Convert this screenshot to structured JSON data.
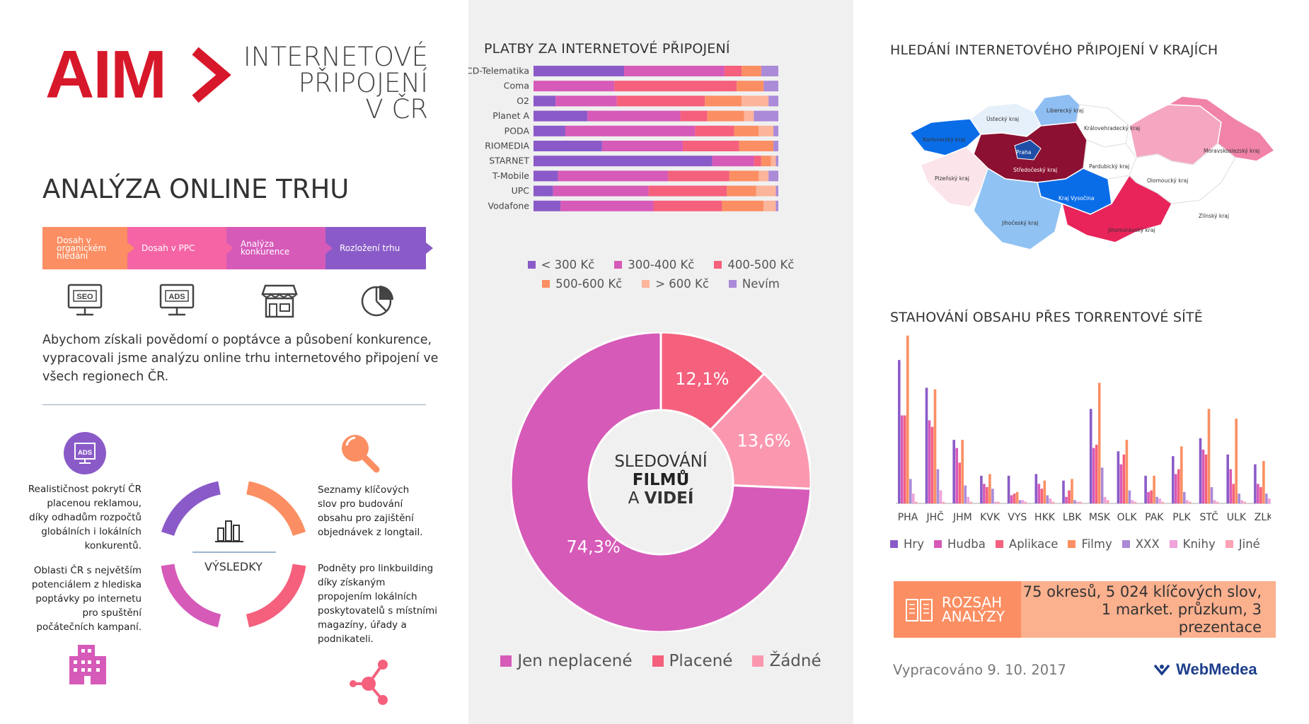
{
  "brand": {
    "logo_text": "AIM",
    "title": "INTERNETOVÉ\nPŘIPOJENÍ\nV ČR",
    "subtitle": "ANALÝZA ONLINE TRHU",
    "accent": "#d7182a"
  },
  "process_steps": [
    {
      "label": "Dosah v organickém hledání",
      "color": "#fb8f63",
      "icon": "seo-monitor-icon"
    },
    {
      "label": "Dosah v PPC",
      "color": "#f565a5",
      "icon": "ads-monitor-icon"
    },
    {
      "label": "Analýza konkurence",
      "color": "#d65ab8",
      "icon": "shop-icon"
    },
    {
      "label": "Rozložení trhu",
      "color": "#8a5bc8",
      "icon": "pie-chart-icon"
    }
  ],
  "step_icon_labels": {
    "seo": "SEO",
    "ads": "ADS"
  },
  "intro_text": "Abychom získali povědomí o poptávce a působení konkurence, vypracovali jsme analýzu online trhu internetového připojení ve všech regionech ČR.",
  "results": {
    "center_label": "VÝSLEDKY",
    "ads_badge": "ADS",
    "notes": [
      "Realističnost pokrytí ČR placenou reklamou, díky odhadům rozpočtů globálních i lokálních konkurentů.",
      "Oblasti ČR s největším potenciálem z hlediska poptávky po internetu pro spuštění počátečních kampaní.",
      "Seznamy klíčových slov pro budování obsahu pro zajištění objednávek z longtail.",
      "Podněty pro linkbuilding díky získaným propojením lokálních poskytovatelů s místními magazíny, úřady a podnikateli."
    ]
  },
  "sections": {
    "payments_title": "PLATBY  ZA INTERNETOVÉ PŘIPOJENÍ",
    "map_title": "HLEDÁNÍ INTERNETOVÉHO PŘIPOJENÍ V KRAJÍCH",
    "torrent_title": "STAHOVÁNÍ OBSAHU PŘES TORRENTOVÉ SÍTĚ"
  },
  "donut_center": {
    "line1": "SLEDOVÁNÍ",
    "line2": "FILMŮ",
    "line3_prefix": "A ",
    "line3_bold": "VIDEÍ"
  },
  "map_regions": [
    "Ústecký kraj",
    "Liberecký kraj",
    "Královehradecký kraj",
    "Karlovarský kraj",
    "Praha",
    "Středočeský kraj",
    "Pardubický kraj",
    "Moravskoslezský kraj",
    "Plzeňský kraj",
    "Olomoucký kraj",
    "Kraj Vysočina",
    "Zlínský kraj",
    "Jihočeský kraj",
    "Jihomoravský kraj"
  ],
  "summary": {
    "label": "ROZSAH ANALÝZY",
    "line1": "75 okresů, 5 024 klíčových slov,",
    "line2": "1 market. průzkum, 3 prezentace"
  },
  "footer": {
    "date": "Vypracováno 9. 10. 2017",
    "brand": "WebMedea"
  },
  "chart_data": [
    {
      "type": "bar",
      "orientation": "horizontal",
      "stacked": true,
      "title": "PLATBY  ZA INTERNETOVÉ PŘIPOJENÍ",
      "categories": [
        "CD-Telematika",
        "Coma",
        "O2",
        "Planet A",
        "PODA",
        "RIOMEDIA",
        "STARNET",
        "T-Mobile",
        "UPC",
        "Vodafone"
      ],
      "series": [
        {
          "name": "< 300 Kč",
          "color": "#8a5bc8",
          "values": [
            37,
            0,
            9,
            22,
            13,
            28,
            73,
            10,
            8,
            11
          ]
        },
        {
          "name": "300-400 Kč",
          "color": "#d65ab8",
          "values": [
            41,
            33,
            25,
            38,
            53,
            33,
            17,
            45,
            39,
            38
          ]
        },
        {
          "name": "400-500 Kč",
          "color": "#f5607d",
          "values": [
            7,
            50,
            36,
            11,
            16,
            23,
            3,
            25,
            32,
            28
          ]
        },
        {
          "name": "500-600 Kč",
          "color": "#fb8f63",
          "values": [
            8,
            11,
            15,
            15,
            10,
            14,
            4,
            12,
            12,
            17
          ]
        },
        {
          "name": "> 600 Kč",
          "color": "#fcb49b",
          "values": [
            0,
            0,
            11,
            4,
            6,
            0,
            2,
            4,
            8,
            5
          ]
        },
        {
          "name": "Nevím",
          "color": "#ab8ad8",
          "values": [
            7,
            6,
            4,
            10,
            2,
            2,
            1,
            4,
            1,
            1
          ]
        }
      ],
      "xlim": [
        0,
        100
      ],
      "legend": "bottom"
    },
    {
      "type": "pie",
      "donut": true,
      "title": "SLEDOVÁNÍ FILMŮ A VIDEÍ",
      "slices": [
        {
          "name": "Jen neplacené",
          "value": 74.3,
          "label": "74,3%",
          "color": "#d65ab8"
        },
        {
          "name": "Placené",
          "value": 12.1,
          "label": "12,1%",
          "color": "#f5607d"
        },
        {
          "name": "Žádné",
          "value": 13.6,
          "label": "13,6%",
          "color": "#fb98b0"
        }
      ],
      "legend": "bottom"
    },
    {
      "type": "bar",
      "title": "STAHOVÁNÍ OBSAHU PŘES TORRENTOVÉ SÍTĚ",
      "categories": [
        "PHA",
        "JHČ",
        "JHM",
        "KVK",
        "VYS",
        "HKK",
        "LBK",
        "MSK",
        "OLK",
        "PAK",
        "PLK",
        "STČ",
        "ULK",
        "ZLK"
      ],
      "series": [
        {
          "name": "Hry",
          "color": "#8a5bc8",
          "values": [
            88,
            71,
            39,
            17,
            17,
            18,
            14,
            58,
            32,
            17,
            29,
            40,
            30,
            24
          ]
        },
        {
          "name": "Hudba",
          "color": "#d65ab8",
          "values": [
            54,
            51,
            34,
            12,
            5,
            12,
            4,
            34,
            24,
            7,
            18,
            33,
            21,
            12
          ]
        },
        {
          "name": "Aplikace",
          "color": "#f5607d",
          "values": [
            54,
            47,
            25,
            10,
            6,
            9,
            8,
            36,
            30,
            8,
            21,
            30,
            12,
            10
          ]
        },
        {
          "name": "Filmy",
          "color": "#fb8f63",
          "values": [
            103,
            70,
            39,
            18,
            7,
            14,
            15,
            74,
            39,
            17,
            35,
            58,
            52,
            26
          ]
        },
        {
          "name": "XXX",
          "color": "#ab8ad8",
          "values": [
            15,
            21,
            11,
            9,
            2,
            5,
            2,
            22,
            8,
            4,
            7,
            10,
            6,
            6
          ]
        },
        {
          "name": "Knihy",
          "color": "#f0a2da",
          "values": [
            6,
            8,
            4,
            1,
            2,
            3,
            1,
            4,
            2,
            3,
            2,
            2,
            2,
            3
          ]
        },
        {
          "name": "Jiné",
          "color": "#fca1b2",
          "values": [
            1,
            1,
            1,
            1,
            1,
            1,
            1,
            2,
            1,
            1,
            1,
            1,
            1,
            1
          ]
        }
      ],
      "ylim": [
        0,
        105
      ],
      "legend": "bottom"
    }
  ]
}
